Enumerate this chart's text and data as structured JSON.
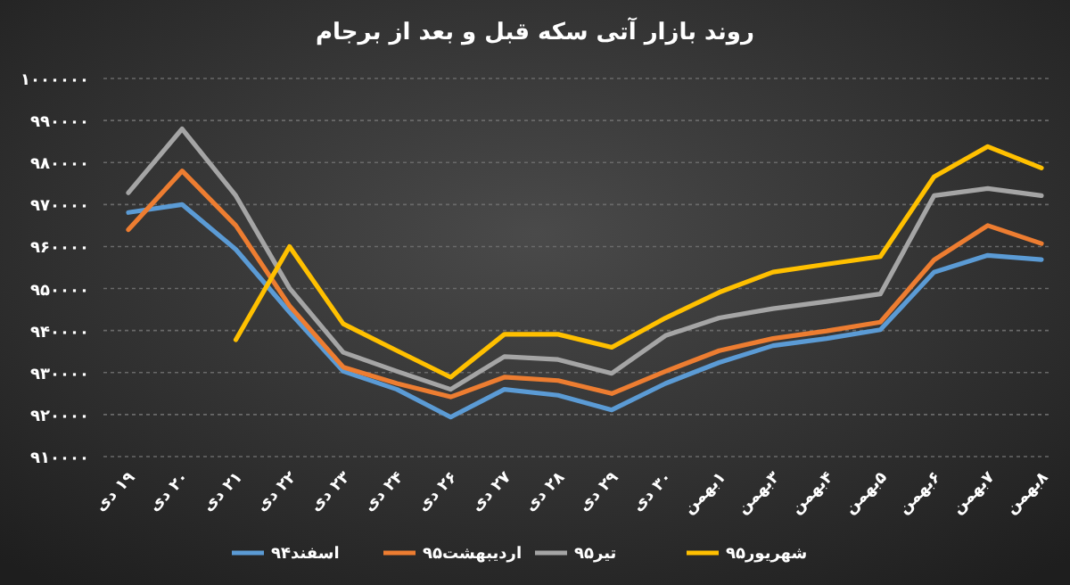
{
  "chart_data": {
    "type": "line",
    "title": "روند بازار آتی سکه قبل و بعد از برجام",
    "categories": [
      "۱۹ دی",
      "۲۰ دی",
      "۲۱ دی",
      "۲۲ دی",
      "۲۳ دی",
      "۲۴ دی",
      "۲۶ دی",
      "۲۷ دی",
      "۲۸ دی",
      "۲۹ دی",
      "۳۰ دی",
      "۱بهمن",
      "۳بهمن",
      "۴بهمن",
      "۵بهمن",
      "۶بهمن",
      "۷بهمن",
      "۸بهمن"
    ],
    "series": [
      {
        "name": "۹۴اسفند",
        "color": "#5b9bd5",
        "values": [
          968100,
          970000,
          959300,
          944400,
          930300,
          926000,
          919400,
          926000,
          924600,
          921100,
          927400,
          932400,
          936400,
          938100,
          940200,
          953900,
          957900,
          956900
        ]
      },
      {
        "name": "۹۵اردیبهشت",
        "color": "#ed7d31",
        "values": [
          964000,
          978000,
          965000,
          945900,
          931300,
          927400,
          924200,
          928900,
          928100,
          925000,
          930300,
          935200,
          938100,
          939900,
          942000,
          956800,
          965000,
          960700
        ]
      },
      {
        "name": "۹۵تیر",
        "color": "#a5a5a5",
        "values": [
          972800,
          988000,
          972100,
          950100,
          934800,
          930300,
          926000,
          933800,
          933100,
          929800,
          938800,
          943000,
          945200,
          946900,
          948700,
          972100,
          973800,
          972100
        ]
      },
      {
        "name": "۹۵شهریور",
        "color": "#ffc000",
        "values": [
          null,
          null,
          937800,
          960000,
          941600,
          935200,
          928900,
          939100,
          939100,
          936000,
          943000,
          949100,
          953900,
          955800,
          957600,
          976600,
          983800,
          978700
        ]
      }
    ],
    "ylim": [
      910000,
      1000000
    ],
    "yticks": [
      {
        "value": 910000,
        "label": "۹۱۰۰۰۰"
      },
      {
        "value": 920000,
        "label": "۹۲۰۰۰۰"
      },
      {
        "value": 930000,
        "label": "۹۳۰۰۰۰"
      },
      {
        "value": 940000,
        "label": "۹۴۰۰۰۰"
      },
      {
        "value": 950000,
        "label": "۹۵۰۰۰۰"
      },
      {
        "value": 960000,
        "label": "۹۶۰۰۰۰"
      },
      {
        "value": 970000,
        "label": "۹۷۰۰۰۰"
      },
      {
        "value": 980000,
        "label": "۹۸۰۰۰۰"
      },
      {
        "value": 990000,
        "label": "۹۹۰۰۰۰"
      },
      {
        "value": 1000000,
        "label": "۱۰۰۰۰۰۰"
      }
    ],
    "grid": "y",
    "legend": "bottom",
    "line_style": "solid",
    "marker": "none"
  }
}
